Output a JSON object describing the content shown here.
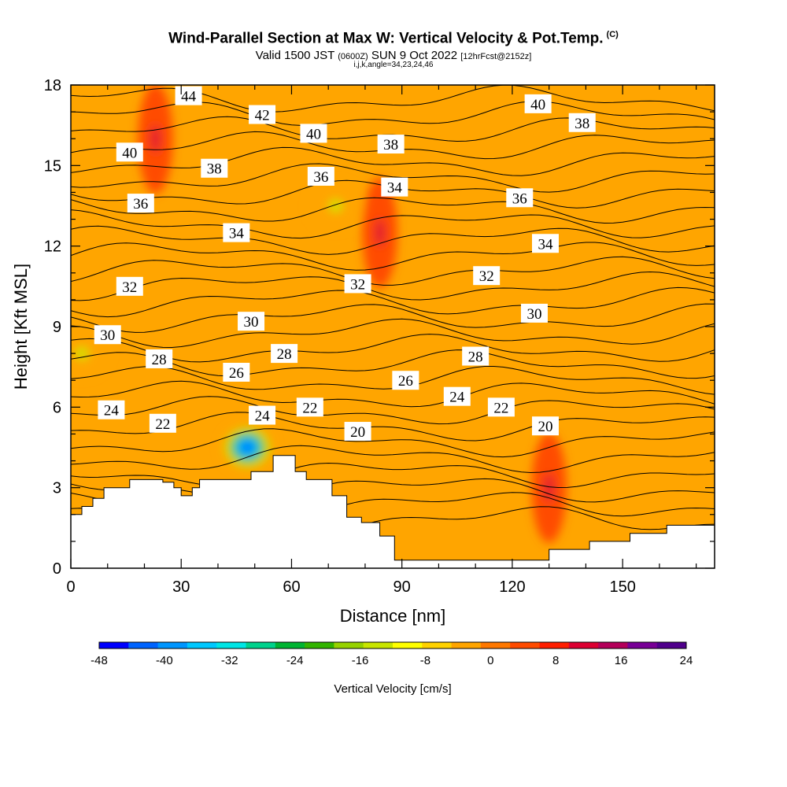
{
  "title": {
    "main": "Wind-Parallel Section at Max W: Vertical Velocity & Pot.Temp.",
    "copyright": "(C)",
    "valid_prefix": "Valid 1500 JST",
    "valid_utc": "(0600Z)",
    "valid_date": "SUN 9 Oct 2022",
    "forecast": "[12hrFcst@2152z]",
    "indices": "i,j,k,angle=34,23,24,46"
  },
  "colors": {
    "background": "#ffa500",
    "terrain": "#ffffff",
    "contour": "#000000"
  },
  "chart_data": {
    "type": "heatmap",
    "xlabel": "Distance [nm]",
    "ylabel": "Height [Kft MSL]",
    "xlim": [
      0,
      175
    ],
    "ylim": [
      0,
      18
    ],
    "xticks": [
      "0",
      "30",
      "60",
      "90",
      "120",
      "150"
    ],
    "yticks": [
      "0",
      "3",
      "6",
      "9",
      "12",
      "15",
      "18"
    ],
    "colorbar": {
      "label": "Vertical Velocity [cm/s]",
      "tick_labels": [
        "-48",
        "-40",
        "-32",
        "-24",
        "-16",
        "-8",
        "0",
        "8",
        "16",
        "24"
      ],
      "levels": [
        -48,
        -44,
        -40,
        -36,
        -32,
        -28,
        -24,
        -20,
        -16,
        -12,
        -8,
        -4,
        0,
        4,
        8,
        12,
        16,
        20,
        24
      ],
      "colors": [
        "#0000ff",
        "#0064ff",
        "#0096ff",
        "#00c8ff",
        "#00e6e6",
        "#00d28c",
        "#00b432",
        "#32b400",
        "#96d200",
        "#c8e600",
        "#ffff00",
        "#ffd200",
        "#ffa500",
        "#ff7800",
        "#ff4b00",
        "#ff1e00",
        "#dc0032",
        "#b4005a",
        "#780096",
        "#50008c"
      ]
    },
    "terrain_profile": [
      [
        0,
        2
      ],
      [
        3,
        2
      ],
      [
        3,
        2.3
      ],
      [
        6,
        2.3
      ],
      [
        6,
        2.6
      ],
      [
        9,
        2.6
      ],
      [
        9,
        3
      ],
      [
        16,
        3
      ],
      [
        16,
        3.3
      ],
      [
        25,
        3.3
      ],
      [
        25,
        3.2
      ],
      [
        28,
        3.2
      ],
      [
        28,
        3
      ],
      [
        30,
        3
      ],
      [
        30,
        2.7
      ],
      [
        33,
        2.7
      ],
      [
        33,
        3
      ],
      [
        35,
        3
      ],
      [
        35,
        3.3
      ],
      [
        49,
        3.3
      ],
      [
        49,
        3.6
      ],
      [
        55,
        3.6
      ],
      [
        55,
        4.2
      ],
      [
        61,
        4.2
      ],
      [
        61,
        3.6
      ],
      [
        64,
        3.6
      ],
      [
        64,
        3.3
      ],
      [
        71,
        3.3
      ],
      [
        71,
        2.7
      ],
      [
        75,
        2.7
      ],
      [
        75,
        1.9
      ],
      [
        79,
        1.9
      ],
      [
        79,
        1.7
      ],
      [
        84,
        1.7
      ],
      [
        84,
        1.2
      ],
      [
        88,
        1.2
      ],
      [
        88,
        0.3
      ],
      [
        130,
        0.3
      ],
      [
        130,
        0.7
      ],
      [
        141,
        0.7
      ],
      [
        141,
        1
      ],
      [
        152,
        1
      ],
      [
        152,
        1.3
      ],
      [
        162,
        1.3
      ],
      [
        162,
        1.6
      ],
      [
        175,
        1.6
      ]
    ],
    "w_features": [
      {
        "x": 48,
        "y": 4.5,
        "value": -48
      },
      {
        "x": 130,
        "y": 3,
        "value": 12
      },
      {
        "x": 23,
        "y": 16,
        "value": 12
      },
      {
        "x": 84,
        "y": 12.5,
        "value": 12
      },
      {
        "x": 3,
        "y": 8,
        "value": -16
      },
      {
        "x": 72,
        "y": 13.5,
        "value": -16
      }
    ],
    "theta_contour_labels": [
      {
        "value": "44",
        "x": 32,
        "y": 17.6
      },
      {
        "value": "42",
        "x": 52,
        "y": 16.9
      },
      {
        "value": "40",
        "x": 66,
        "y": 16.2
      },
      {
        "value": "40",
        "x": 127,
        "y": 17.3
      },
      {
        "value": "38",
        "x": 139,
        "y": 16.6
      },
      {
        "value": "40",
        "x": 16,
        "y": 15.5
      },
      {
        "value": "38",
        "x": 87,
        "y": 15.8
      },
      {
        "value": "38",
        "x": 39,
        "y": 14.9
      },
      {
        "value": "36",
        "x": 68,
        "y": 14.6
      },
      {
        "value": "34",
        "x": 88,
        "y": 14.2
      },
      {
        "value": "36",
        "x": 19,
        "y": 13.6
      },
      {
        "value": "36",
        "x": 122,
        "y": 13.8
      },
      {
        "value": "34",
        "x": 45,
        "y": 12.5
      },
      {
        "value": "34",
        "x": 129,
        "y": 12.1
      },
      {
        "value": "32",
        "x": 16,
        "y": 10.5
      },
      {
        "value": "32",
        "x": 78,
        "y": 10.6
      },
      {
        "value": "32",
        "x": 113,
        "y": 10.9
      },
      {
        "value": "30",
        "x": 49,
        "y": 9.2
      },
      {
        "value": "30",
        "x": 126,
        "y": 9.5
      },
      {
        "value": "30",
        "x": 10,
        "y": 8.7
      },
      {
        "value": "28",
        "x": 24,
        "y": 7.8
      },
      {
        "value": "28",
        "x": 58,
        "y": 8
      },
      {
        "value": "28",
        "x": 110,
        "y": 7.9
      },
      {
        "value": "26",
        "x": 45,
        "y": 7.3
      },
      {
        "value": "26",
        "x": 91,
        "y": 7
      },
      {
        "value": "24",
        "x": 11,
        "y": 5.9
      },
      {
        "value": "24",
        "x": 52,
        "y": 5.7
      },
      {
        "value": "24",
        "x": 105,
        "y": 6.4
      },
      {
        "value": "22",
        "x": 25,
        "y": 5.4
      },
      {
        "value": "22",
        "x": 65,
        "y": 6
      },
      {
        "value": "22",
        "x": 117,
        "y": 6
      },
      {
        "value": "20",
        "x": 78,
        "y": 5.1
      },
      {
        "value": "20",
        "x": 129,
        "y": 5.3
      }
    ]
  }
}
